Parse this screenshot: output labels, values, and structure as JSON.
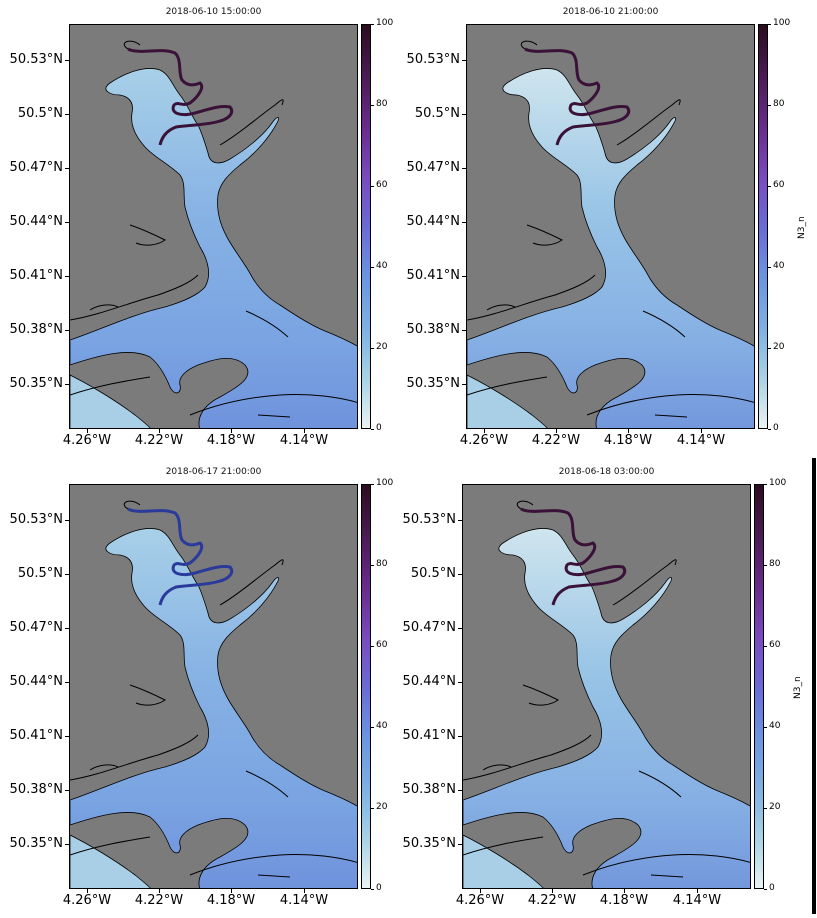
{
  "colorbar": {
    "ticks": [
      "0",
      "20",
      "40",
      "60",
      "80",
      "100"
    ],
    "label": "N3_n"
  },
  "axes": {
    "lat_ticks": [
      "50.53°N",
      "50.5°N",
      "50.47°N",
      "50.44°N",
      "50.41°N",
      "50.38°N",
      "50.35°N"
    ],
    "lon_ticks": [
      "4.26°W",
      "4.22°W",
      "4.18°W",
      "4.14°W"
    ]
  },
  "panels": [
    {
      "title": "2018-06-10 15:00:00",
      "show_cbar_label": false
    },
    {
      "title": "2018-06-10 21:00:00",
      "show_cbar_label": true
    },
    {
      "title": "2018-06-17 21:00:00",
      "show_cbar_label": false
    },
    {
      "title": "2018-06-18 03:00:00",
      "show_cbar_label": true
    }
  ],
  "colors": {
    "land": "#7b7b7b",
    "coast": "#000000",
    "low": "#eaf3f3",
    "mid": "#7fa8e0",
    "high": "#2b0c1f"
  }
}
